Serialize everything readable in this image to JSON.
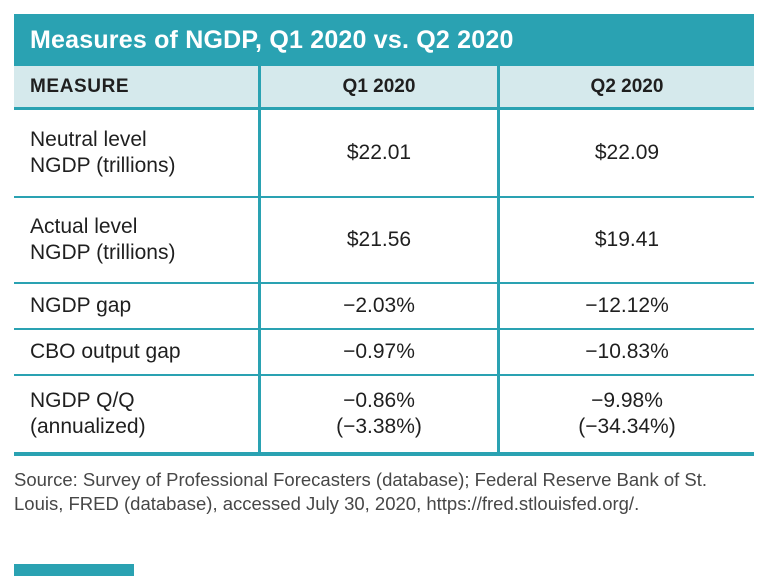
{
  "title": "Measures of NGDP, Q1 2020 vs. Q2 2020",
  "columns": [
    "MEASURE",
    "Q1 2020",
    "Q2 2020"
  ],
  "rows": [
    {
      "measure": "Neutral level\nNGDP (trillions)",
      "q1": "$22.01",
      "q2": "$22.09"
    },
    {
      "measure": "Actual level\nNGDP (trillions)",
      "q1": "$21.56",
      "q2": "$19.41"
    },
    {
      "measure": "NGDP gap",
      "q1": "−2.03%",
      "q2": "−12.12%"
    },
    {
      "measure": "CBO output gap",
      "q1": "−0.97%",
      "q2": "−10.83%"
    },
    {
      "measure": "NGDP Q/Q\n(annualized)",
      "q1": "−0.86%\n(−3.38%)",
      "q2": "−9.98%\n(−34.34%)"
    }
  ],
  "source": "Source: Survey of Professional Forecasters (database); Federal Reserve Bank of St. Louis, FRED (database), accessed July 30, 2020, https://fred.stlouisfed.org/.",
  "colors": {
    "teal": "#2aa2b2",
    "header_bg": "#d5e9ec",
    "text": "#1f1f1f",
    "source_text": "#474747"
  },
  "chart_data": {
    "type": "table",
    "title": "Measures of NGDP, Q1 2020 vs. Q2 2020",
    "columns": [
      "MEASURE",
      "Q1 2020",
      "Q2 2020"
    ],
    "rows": [
      [
        "Neutral level NGDP (trillions)",
        "$22.01",
        "$22.09"
      ],
      [
        "Actual level NGDP (trillions)",
        "$21.56",
        "$19.41"
      ],
      [
        "NGDP gap",
        "−2.03%",
        "−12.12%"
      ],
      [
        "CBO output gap",
        "−0.97%",
        "−10.83%"
      ],
      [
        "NGDP Q/Q (annualized)",
        "−0.86% (−3.38%)",
        "−9.98% (−34.34%)"
      ]
    ],
    "source": "Survey of Professional Forecasters (database); Federal Reserve Bank of St. Louis, FRED (database), accessed July 30, 2020"
  }
}
